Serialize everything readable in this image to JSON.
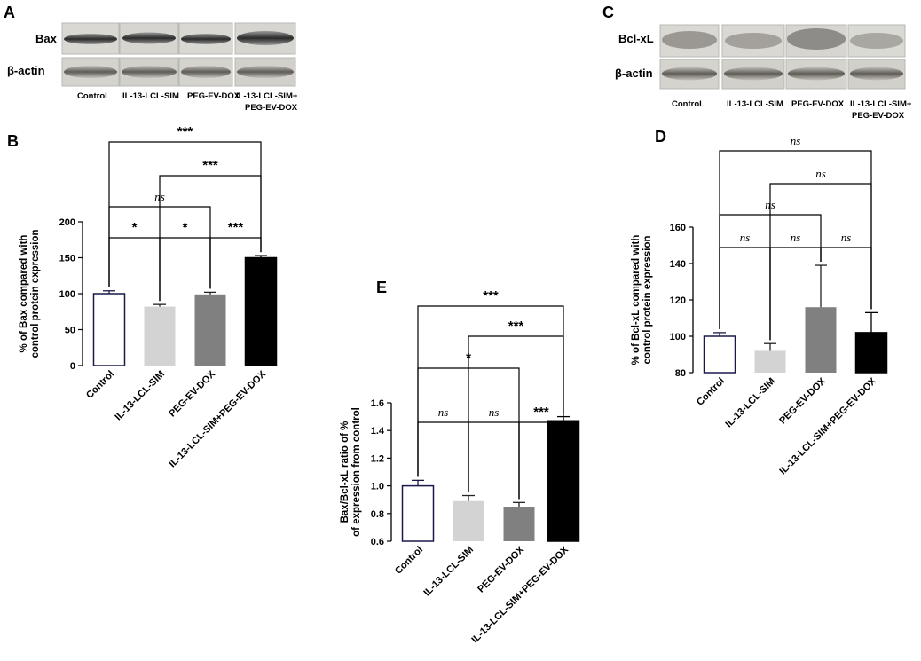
{
  "panels": {
    "A": {
      "letter": "A",
      "rows": [
        "Bax",
        "β-actin"
      ],
      "lanes": [
        "Control",
        "IL-13-LCL-SIM",
        "PEG-EV-DOX",
        "IL-13-LCL-SIM+",
        "PEG-EV-DOX"
      ]
    },
    "C": {
      "letter": "C",
      "rows": [
        "Bcl-xL",
        "β-actin"
      ],
      "lanes": [
        "Control",
        "IL-13-LCL-SIM",
        "PEG-EV-DOX",
        "IL-13-LCL-SIM+",
        "PEG-EV-DOX"
      ]
    }
  },
  "chart_data": [
    {
      "id": "B",
      "letter": "B",
      "type": "bar",
      "categories": [
        "Control",
        "IL-13-LCL-SIM",
        "PEG-EV-DOX",
        "IL-13-LCL-SIM+PEG-EV-DOX"
      ],
      "values": [
        100,
        82,
        99,
        150
      ],
      "errors": [
        4,
        3,
        3,
        3
      ],
      "colors": [
        "#ffffff",
        "#d3d3d3",
        "#808080",
        "#000000"
      ],
      "ylabel": [
        "% of Bax compared with",
        "control protein expression"
      ],
      "ylim": [
        0,
        200
      ],
      "yticks": [
        "0",
        "50",
        "100",
        "150",
        "200"
      ],
      "ytick_values": [
        0,
        50,
        100,
        150,
        200
      ],
      "significance": [
        {
          "from": 0,
          "to": 1,
          "label": "*"
        },
        {
          "from": 1,
          "to": 2,
          "label": "*"
        },
        {
          "from": 2,
          "to": 3,
          "label": "***"
        },
        {
          "from": 0,
          "to": 2,
          "label": "ns"
        },
        {
          "from": 1,
          "to": 3,
          "label": "***"
        },
        {
          "from": 0,
          "to": 3,
          "label": "***"
        }
      ]
    },
    {
      "id": "D",
      "letter": "D",
      "type": "bar",
      "categories": [
        "Control",
        "IL-13-LCL-SIM",
        "PEG-EV-DOX",
        "IL-13-LCL-SIM+PEG-EV-DOX"
      ],
      "values": [
        100,
        92,
        116,
        102
      ],
      "errors": [
        2,
        4,
        23,
        11
      ],
      "colors": [
        "#ffffff",
        "#d3d3d3",
        "#808080",
        "#000000"
      ],
      "ylabel": [
        "% of Bcl-xL compared with",
        "control protein expression"
      ],
      "ylim": [
        80,
        160
      ],
      "yticks": [
        "80",
        "100",
        "120",
        "140",
        "160"
      ],
      "ytick_values": [
        80,
        100,
        120,
        140,
        160
      ],
      "significance": [
        {
          "from": 0,
          "to": 1,
          "label": "ns"
        },
        {
          "from": 1,
          "to": 2,
          "label": "ns"
        },
        {
          "from": 2,
          "to": 3,
          "label": "ns"
        },
        {
          "from": 0,
          "to": 2,
          "label": "ns"
        },
        {
          "from": 1,
          "to": 3,
          "label": "ns"
        },
        {
          "from": 0,
          "to": 3,
          "label": "ns"
        }
      ]
    },
    {
      "id": "E",
      "letter": "E",
      "type": "bar",
      "categories": [
        "Control",
        "IL-13-LCL-SIM",
        "PEG-EV-DOX",
        "IL-13-LCL-SIM+PEG-EV-DOX"
      ],
      "values": [
        1.0,
        0.89,
        0.85,
        1.47
      ],
      "errors": [
        0.04,
        0.04,
        0.03,
        0.03
      ],
      "colors": [
        "#ffffff",
        "#d3d3d3",
        "#808080",
        "#000000"
      ],
      "ylabel": [
        "Bax/Bcl-xL ratio of %",
        "of expression from control"
      ],
      "ylim": [
        0.6,
        1.6
      ],
      "yticks": [
        "0.6",
        "0.8",
        "1.0",
        "1.2",
        "1.4",
        "1.6"
      ],
      "ytick_values": [
        0.6,
        0.8,
        1.0,
        1.2,
        1.4,
        1.6
      ],
      "significance": [
        {
          "from": 0,
          "to": 1,
          "label": "ns"
        },
        {
          "from": 1,
          "to": 2,
          "label": "ns"
        },
        {
          "from": 2,
          "to": 3,
          "label": "***"
        },
        {
          "from": 0,
          "to": 2,
          "label": "*"
        },
        {
          "from": 1,
          "to": 3,
          "label": "***"
        },
        {
          "from": 0,
          "to": 3,
          "label": "***"
        }
      ]
    }
  ]
}
